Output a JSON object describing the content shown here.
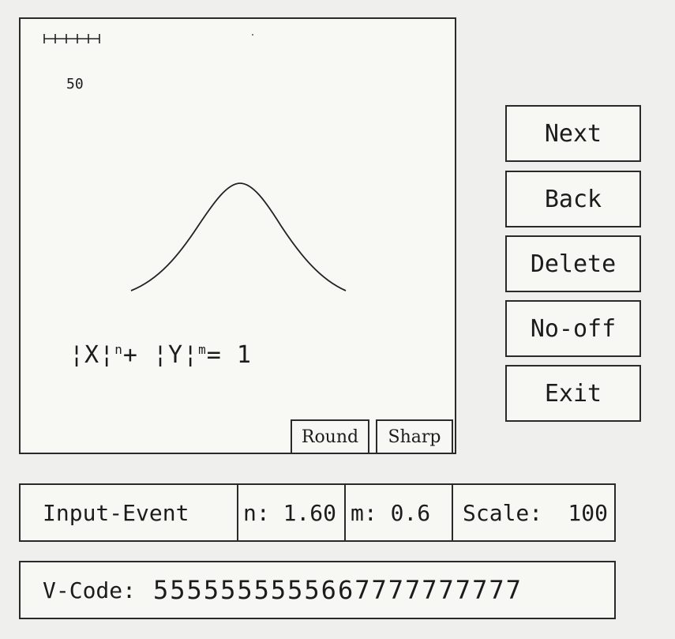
{
  "canvas": {
    "scale_value": "50",
    "formula": {
      "x_term": "¦X¦",
      "n_sup": "n",
      "plus": "+",
      "y_term": "¦Y¦",
      "m_sup": "m",
      "equals": "= 1"
    },
    "round_label": "Round",
    "sharp_label": "Sharp"
  },
  "sidebar": {
    "buttons": [
      {
        "label": "Next"
      },
      {
        "label": "Back"
      },
      {
        "label": "Delete"
      },
      {
        "label": "No-off"
      },
      {
        "label": "Exit"
      }
    ]
  },
  "status": {
    "event_label": "Input-Event",
    "n_label": "n:",
    "n_value": "1.60",
    "m_label": "m:",
    "m_value": "0.6",
    "scale_label": "Scale:",
    "scale_value": "100"
  },
  "vcode": {
    "label": "V-Code:",
    "value": "5555555555667777777777"
  }
}
